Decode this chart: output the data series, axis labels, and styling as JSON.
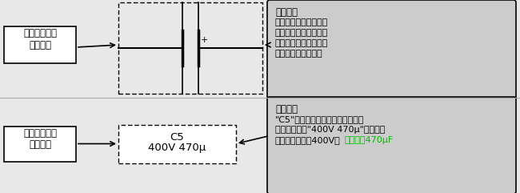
{
  "bg_color": "#e8e8e8",
  "label1_box_text": "电路标识一：\n图形符号",
  "label2_box_text": "电路标识二：\n文字标识",
  "cap_label_text": "C5\n400V 470µ",
  "note1_title": "【说明】",
  "note1_body": "通过图形符号可以简单\n识别电容器的类型（该\n符号为有极性电容器在\n电路中的图形符号）",
  "note2_title": "【说明】",
  "note2_body_line1": "\"C5\"表示电容器在电子电路图中的",
  "note2_body_line2": "名称和序号，\"400V 470µ\"表示该电",
  "note2_body_line3": "容器的耐压值为400V，",
  "note2_body_line3_green": "电容量为470µF",
  "note_bg": "#cccccc",
  "white_bg": "#ffffff",
  "line_color": "#000000",
  "highlight_color": "#00bb00",
  "divider_color": "#aaaaaa"
}
